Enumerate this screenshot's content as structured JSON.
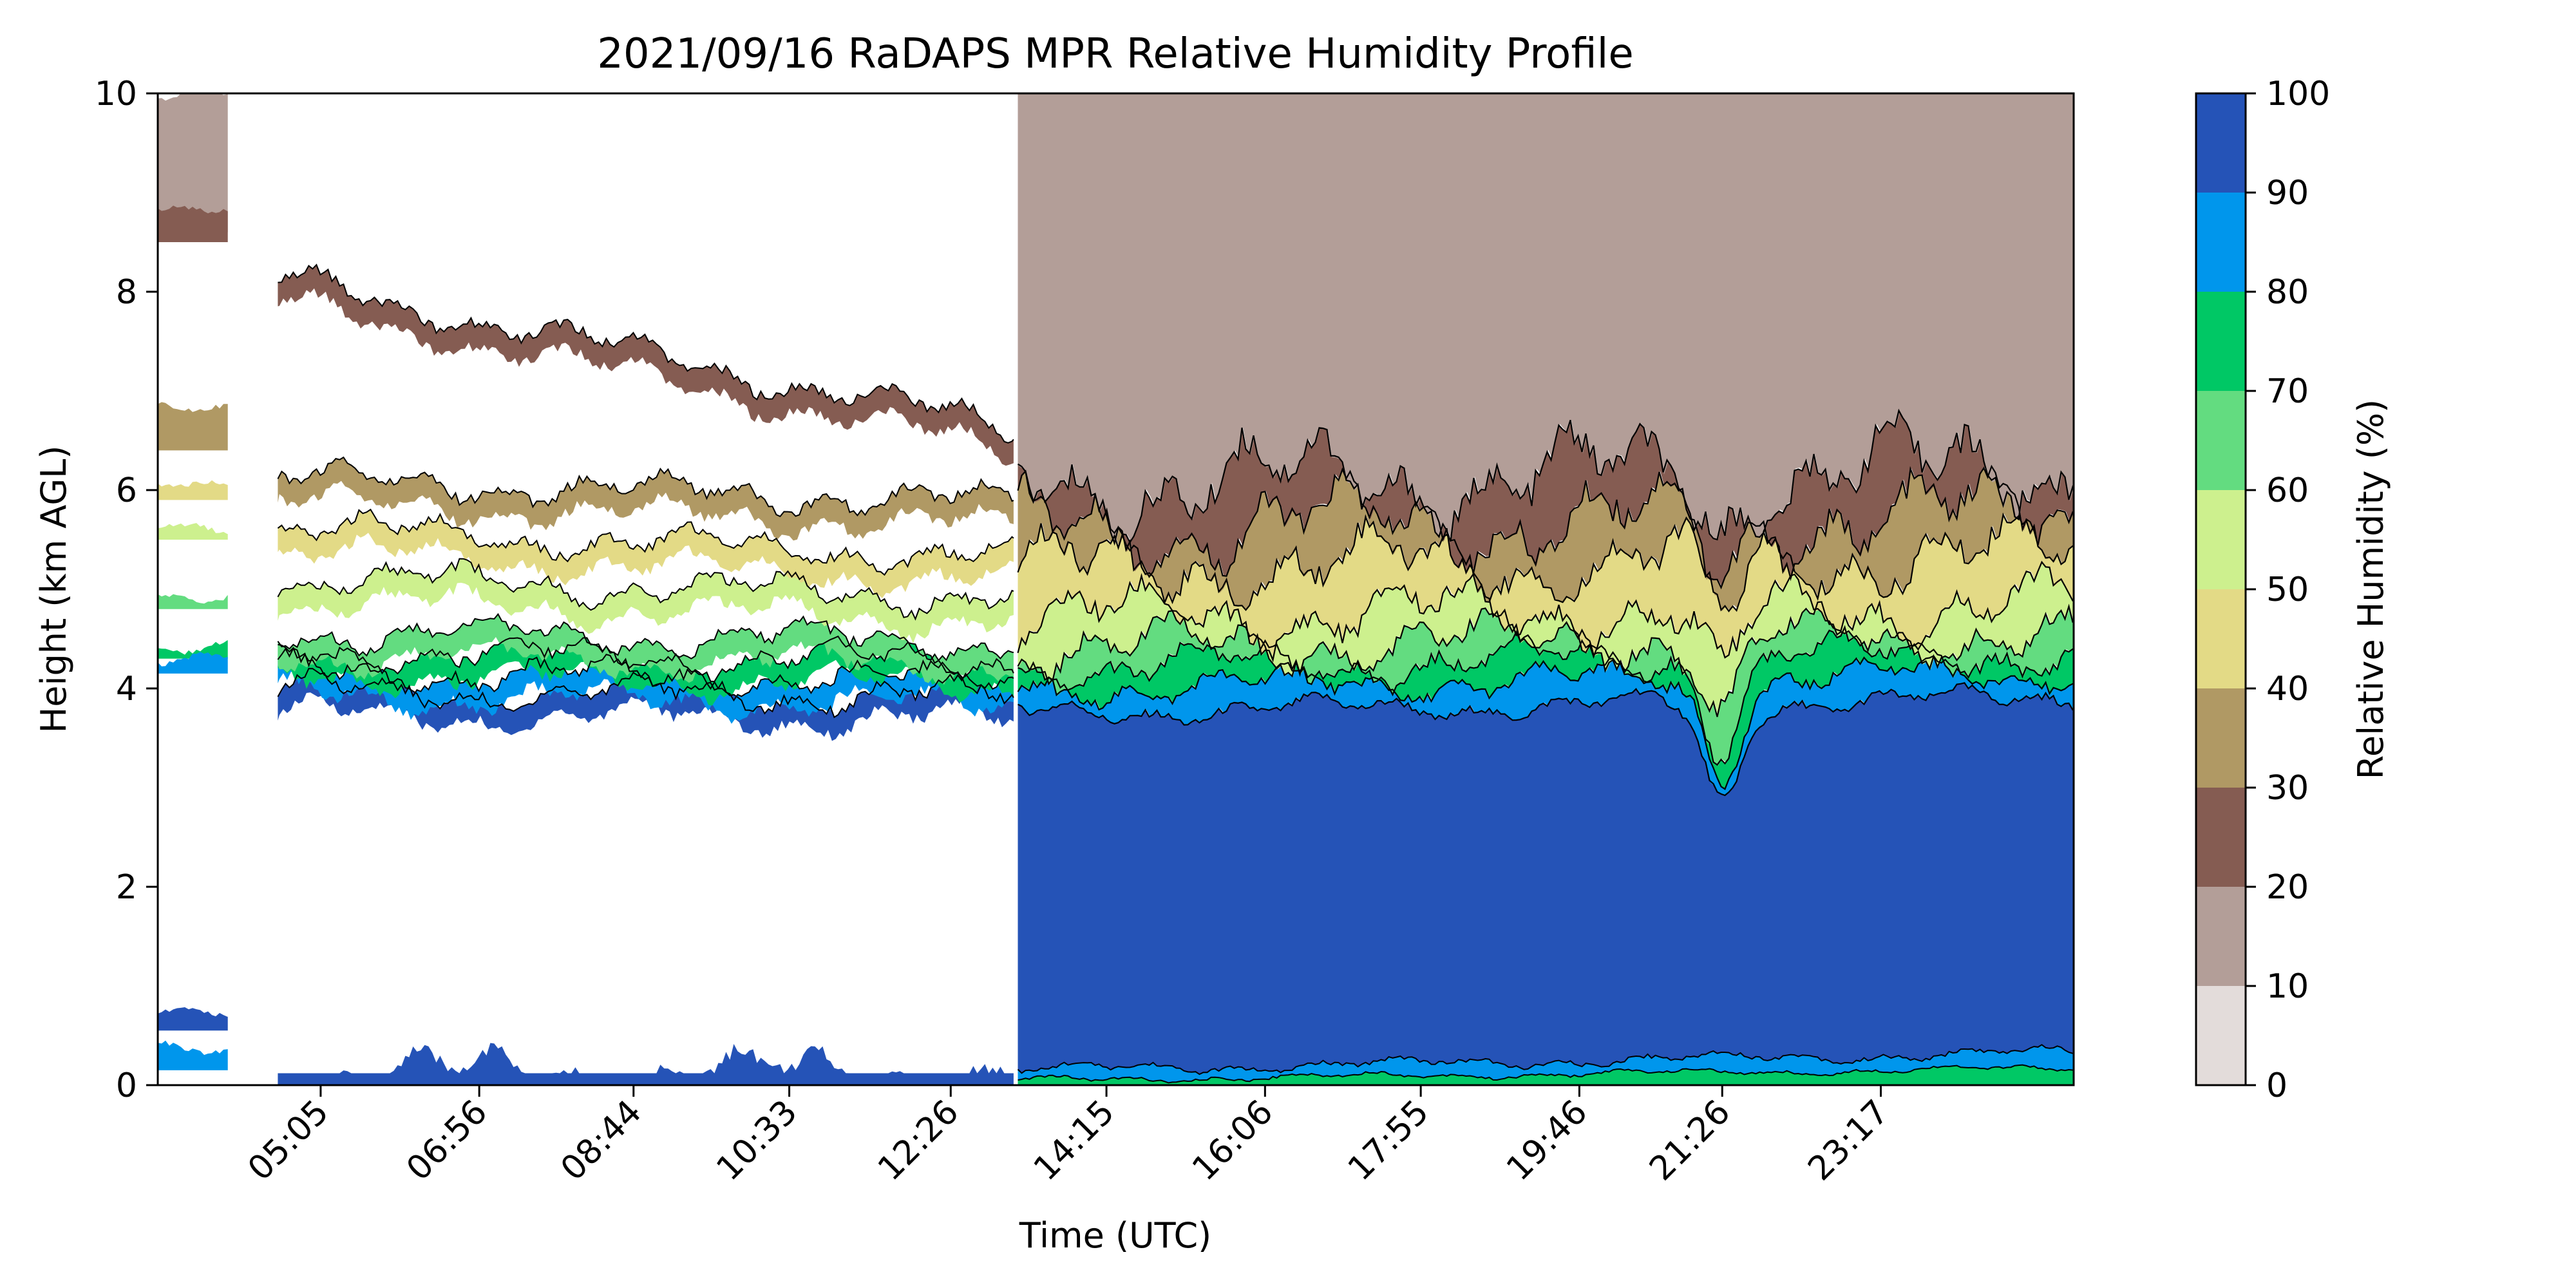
{
  "chart_data": {
    "type": "contour",
    "title": "2021/09/16 RaDAPS MPR Relative Humidity Profile",
    "xlabel": "Time (UTC)",
    "ylabel": "Height (km AGL)",
    "colorbar_label": "Relative Humidity (%)",
    "xlim": [
      "03:11",
      "25:32"
    ],
    "ylim": [
      0,
      10
    ],
    "xticks": [
      "05:05",
      "06:56",
      "08:44",
      "10:33",
      "12:26",
      "14:15",
      "16:06",
      "17:55",
      "19:46",
      "21:26",
      "23:17"
    ],
    "yticks": [
      0,
      2,
      4,
      6,
      8,
      10
    ],
    "colorbar_ticks": [
      0,
      10,
      20,
      30,
      40,
      50,
      60,
      70,
      80,
      90,
      100
    ],
    "levels": [
      {
        "range": [
          0,
          10
        ],
        "color": "#e3dcda"
      },
      {
        "range": [
          10,
          20
        ],
        "color": "#b39e98"
      },
      {
        "range": [
          20,
          30
        ],
        "color": "#855c52"
      },
      {
        "range": [
          30,
          40
        ],
        "color": "#b09964"
      },
      {
        "range": [
          40,
          50
        ],
        "color": "#e3da86"
      },
      {
        "range": [
          50,
          60
        ],
        "color": "#cdf08e"
      },
      {
        "range": [
          60,
          70
        ],
        "color": "#63dc80"
      },
      {
        "range": [
          70,
          80
        ],
        "color": "#00c865"
      },
      {
        "range": [
          80,
          90
        ],
        "color": "#0096ec"
      },
      {
        "range": [
          90,
          100
        ],
        "color": "#2553b7"
      }
    ],
    "data_gaps": [
      [
        "04:00",
        "04:35"
      ],
      [
        "13:10",
        "13:13"
      ]
    ],
    "profile_late_day_height_km": [
      {
        "rh_min": 90,
        "height_km": 3.9
      },
      {
        "rh_min": 80,
        "height_km": 4.15
      },
      {
        "rh_min": 70,
        "height_km": 4.35
      },
      {
        "rh_min": 60,
        "height_km": 4.55
      },
      {
        "rh_min": 50,
        "height_km": 4.85
      },
      {
        "rh_min": 40,
        "height_km": 5.35
      },
      {
        "rh_min": 30,
        "height_km": 5.75
      },
      {
        "rh_min": 20,
        "height_km": 6.2
      },
      {
        "rh_min": 10,
        "height_km": 10
      }
    ],
    "min_blue_layer_top_km": 2.9,
    "min_blue_layer_time": "21:26"
  }
}
